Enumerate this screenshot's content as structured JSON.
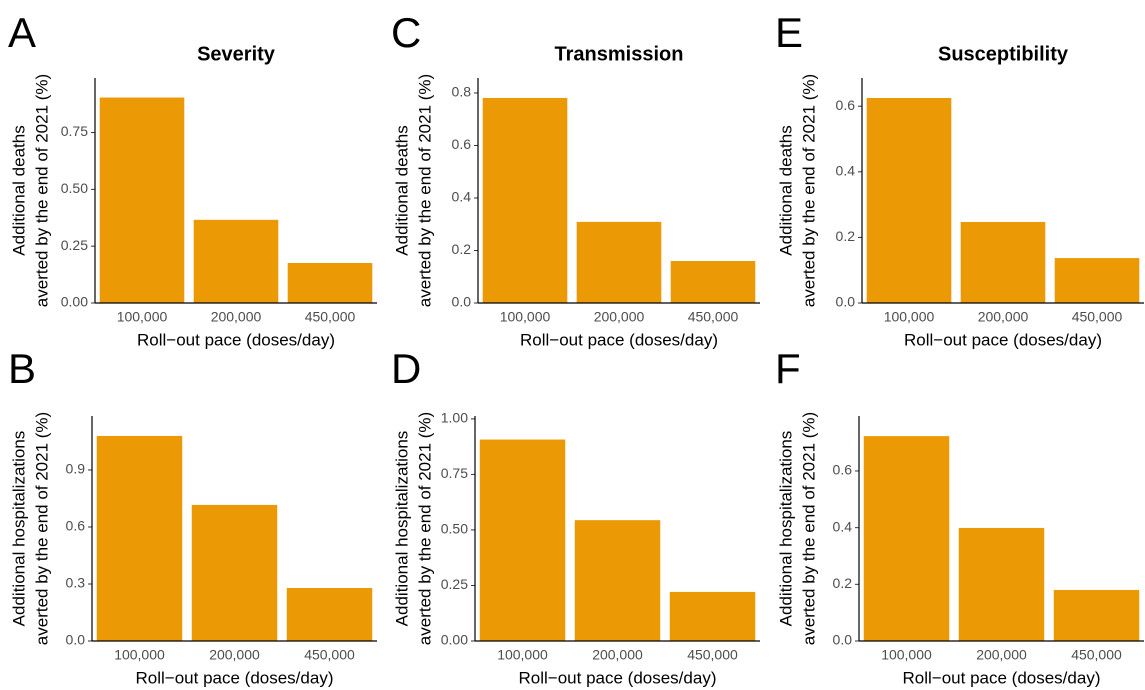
{
  "chart_data": [
    {
      "type": "bar",
      "panel": "A",
      "title": "Severity",
      "y_label": [
        "Additional deaths",
        "averted by the end of 2021 (%)"
      ],
      "x_label": "Roll−out pace (doses/day)",
      "categories": [
        "100,000",
        "200,000",
        "450,000"
      ],
      "values": [
        0.904,
        0.366,
        0.176
      ],
      "color": "#eb9a05",
      "ylim": [
        0,
        0.99
      ],
      "yticks": [
        {
          "value": 0,
          "label": "0.00"
        },
        0.25,
        {
          "value": 0.5,
          "label": "0.50"
        },
        0.75
      ]
    },
    {
      "type": "bar",
      "panel": "B",
      "y_label": [
        "Additional hospitalizations",
        "averted by the end of 2021 (%)"
      ],
      "x_label": "Roll−out pace (doses/day)",
      "categories": [
        "100,000",
        "200,000",
        "450,000"
      ],
      "values": [
        1.079,
        0.716,
        0.279
      ],
      "color": "#eb9a05",
      "ylim": [
        0,
        1.184
      ],
      "yticks": [
        {
          "value": 0,
          "label": "0.0"
        },
        0.3,
        0.6,
        0.9
      ]
    },
    {
      "type": "bar",
      "panel": "C",
      "title": "Transmission",
      "y_label": [
        "Additional deaths",
        "averted by the end of 2021 (%)"
      ],
      "x_label": "Roll−out pace (doses/day)",
      "categories": [
        "100,000",
        "200,000",
        "450,000"
      ],
      "values": [
        0.781,
        0.309,
        0.16
      ],
      "color": "#eb9a05",
      "ylim": [
        0,
        0.857
      ],
      "yticks": [
        {
          "value": 0,
          "label": "0.0"
        },
        0.2,
        0.4,
        0.6,
        0.8
      ]
    },
    {
      "type": "bar",
      "panel": "D",
      "y_label": [
        "Additional hospitalizations",
        "averted by the end of 2021 (%)"
      ],
      "x_label": "Roll−out pace (doses/day)",
      "categories": [
        "100,000",
        "200,000",
        "450,000"
      ],
      "values": [
        0.907,
        0.544,
        0.221
      ],
      "color": "#eb9a05",
      "ylim": [
        0,
        1.013
      ],
      "yticks": [
        {
          "value": 0,
          "label": "0.00"
        },
        0.25,
        {
          "value": 0.5,
          "label": "0.50"
        },
        0.75,
        {
          "value": 1,
          "label": "1.00"
        }
      ]
    },
    {
      "type": "bar",
      "panel": "E",
      "title": "Susceptibility",
      "y_label": [
        "Additional deaths",
        "averted by the end of 2021 (%)"
      ],
      "x_label": "Roll−out pace (doses/day)",
      "categories": [
        "100,000",
        "200,000",
        "450,000"
      ],
      "values": [
        0.625,
        0.247,
        0.137
      ],
      "color": "#eb9a05",
      "ylim": [
        0,
        0.686
      ],
      "yticks": [
        {
          "value": 0,
          "label": "0.0"
        },
        0.2,
        0.4,
        0.6
      ]
    },
    {
      "type": "bar",
      "panel": "F",
      "y_label": [
        "Additional hospitalizations",
        "averted by the end of 2021 (%)"
      ],
      "x_label": "Roll−out pace (doses/day)",
      "categories": [
        "100,000",
        "200,000",
        "450,000"
      ],
      "values": [
        0.723,
        0.399,
        0.18
      ],
      "color": "#eb9a05",
      "ylim": [
        0,
        0.794
      ],
      "yticks": [
        {
          "value": 0,
          "label": "0.0"
        },
        0.2,
        0.4,
        0.6
      ]
    }
  ]
}
